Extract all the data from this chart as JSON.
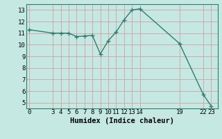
{
  "x": [
    0,
    3,
    4,
    5,
    6,
    7,
    8,
    9,
    10,
    11,
    12,
    13,
    14,
    19,
    22,
    23
  ],
  "y": [
    11.3,
    11.0,
    11.0,
    11.0,
    10.7,
    10.75,
    10.8,
    9.2,
    10.35,
    11.1,
    12.15,
    13.0,
    13.1,
    10.1,
    5.7,
    4.7
  ],
  "line_color": "#2e7d6e",
  "marker_color": "#2e7d6e",
  "bg_color": "#c5e8e2",
  "grid_color": "#d4a0a0",
  "xlabel": "Humidex (Indice chaleur)",
  "xticks": [
    0,
    3,
    4,
    5,
    6,
    7,
    8,
    9,
    10,
    11,
    12,
    13,
    14,
    19,
    22,
    23
  ],
  "yticks": [
    5,
    6,
    7,
    8,
    9,
    10,
    11,
    12,
    13
  ],
  "xlim": [
    -0.3,
    23.8
  ],
  "ylim": [
    4.5,
    13.5
  ],
  "tick_fontsize": 6.5,
  "label_fontsize": 7.5
}
